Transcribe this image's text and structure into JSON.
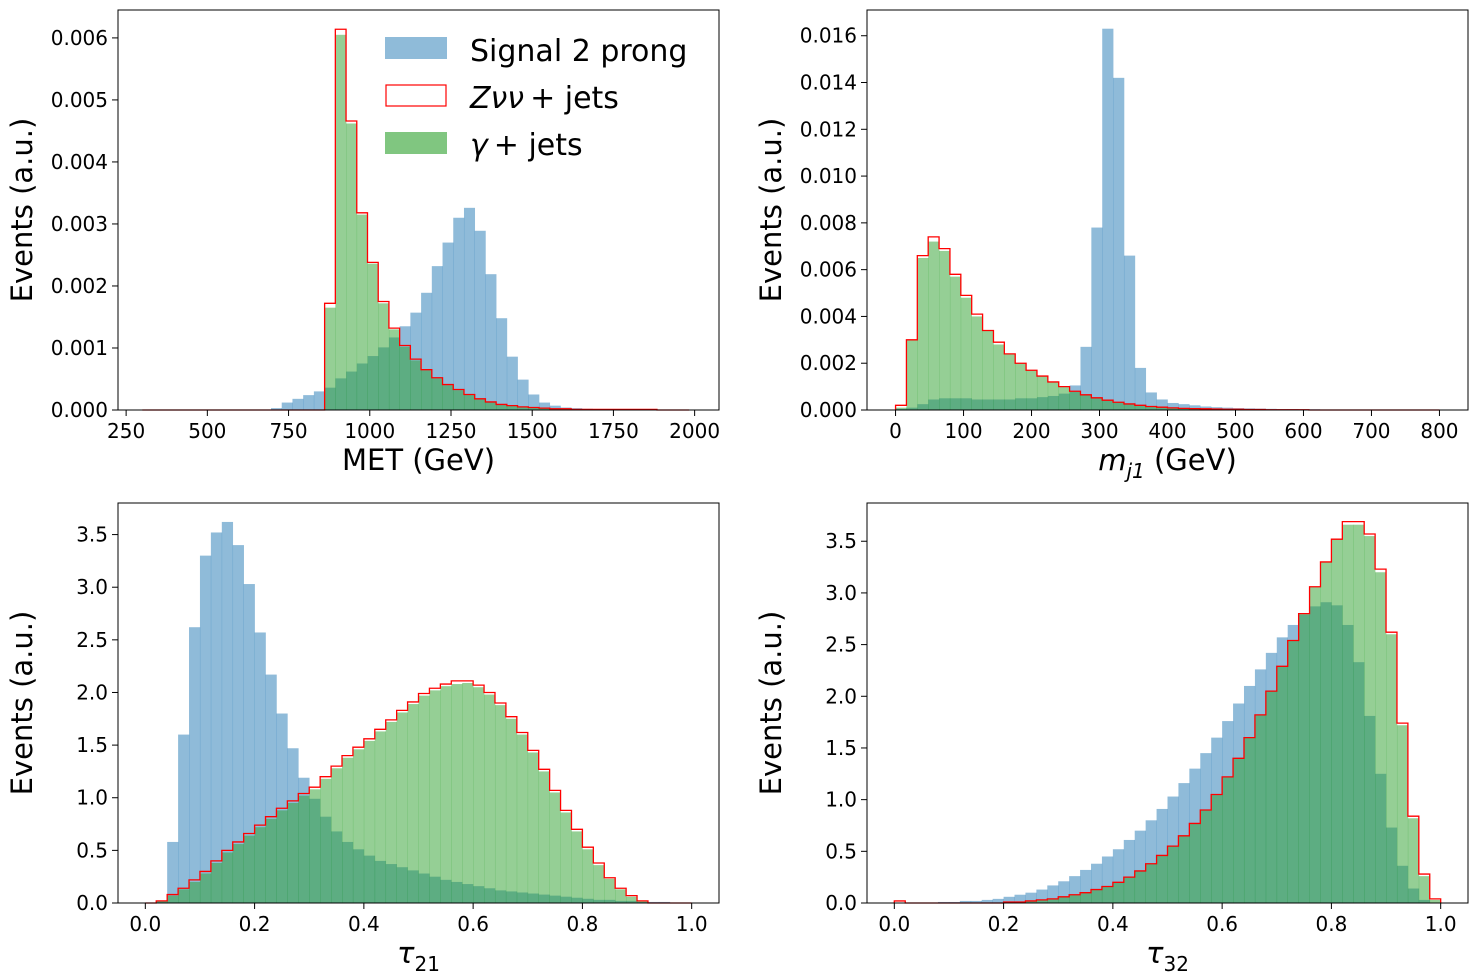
{
  "colors": {
    "signal": "#1f77b4",
    "zvv": "#ff0000",
    "gamma": "#2ca02c"
  },
  "legend": {
    "signal": "Signal 2 prong",
    "zvv_sym": "Zνν",
    "zvv_suffix": "+  jets",
    "gamma_sym": "γ",
    "gamma_suffix": "+  jets"
  },
  "chart_data": [
    {
      "type": "histogram",
      "id": "met",
      "xlabel": "MET (GeV)",
      "xlabel_parts": [
        {
          "t": "MET (GeV)"
        }
      ],
      "ylabel": "Events (a.u.)",
      "xlim": [
        225,
        2075
      ],
      "ylim": [
        0,
        0.00645
      ],
      "xticks": [
        250,
        500,
        750,
        1000,
        1250,
        1500,
        1750,
        2000
      ],
      "yticks": [
        0,
        0.001,
        0.002,
        0.003,
        0.004,
        0.005,
        0.006
      ],
      "ytick_decimals": 3,
      "bins": {
        "start": 300,
        "width": 33
      },
      "series": [
        {
          "key": "signal",
          "name": "Signal 2 prong",
          "values": [
            0,
            0,
            0,
            0,
            0,
            0,
            0,
            0,
            0,
            0,
            0,
            0,
            3e-05,
            0.00012,
            0.00018,
            0.00024,
            0.0003,
            0.00036,
            0.00051,
            0.00062,
            0.00075,
            0.00087,
            0.00101,
            0.00117,
            0.00135,
            0.00157,
            0.00189,
            0.00232,
            0.0027,
            0.0031,
            0.00326,
            0.00289,
            0.00219,
            0.00148,
            0.00086,
            0.00049,
            0.00025,
            0.00012,
            7e-05,
            4e-05,
            3e-05,
            2e-05,
            1e-05,
            1e-05,
            1e-05,
            1e-05,
            0,
            0,
            0,
            0,
            0
          ]
        },
        {
          "key": "zvv",
          "name": "Zνν + jets",
          "values": [
            0,
            0,
            0,
            0,
            0,
            0,
            0,
            0,
            0,
            0,
            0,
            0,
            0,
            0,
            0,
            0,
            0,
            0.00172,
            0.00614,
            0.00466,
            0.00318,
            0.00238,
            0.00175,
            0.00132,
            0.00104,
            0.00082,
            0.00065,
            0.00052,
            0.00041,
            0.00033,
            0.00025,
            0.00018,
            0.00013,
            9e-05,
            7e-05,
            5e-05,
            4e-05,
            3e-05,
            2e-05,
            2e-05,
            1e-05,
            1e-05,
            1e-05,
            1e-05,
            1e-05,
            1e-05,
            1e-05,
            1e-05,
            0,
            0,
            0
          ]
        },
        {
          "key": "gamma",
          "name": "γ + jets",
          "values": [
            0,
            0,
            0,
            0,
            0,
            0,
            0,
            0,
            0,
            0,
            0,
            0,
            0,
            0,
            0,
            0,
            0,
            0.00165,
            0.00605,
            0.00462,
            0.00315,
            0.00236,
            0.00172,
            0.0013,
            0.00102,
            0.0008,
            0.00064,
            0.00051,
            0.0004,
            0.00032,
            0.00025,
            0.00018,
            0.00013,
            9e-05,
            7e-05,
            5e-05,
            4e-05,
            3e-05,
            2e-05,
            2e-05,
            1e-05,
            1e-05,
            1e-05,
            1e-05,
            1e-05,
            1e-05,
            1e-05,
            1e-05,
            0,
            0,
            0
          ]
        }
      ]
    },
    {
      "type": "histogram",
      "id": "mj1",
      "xlabel": "m_j1 (GeV)",
      "xlabel_parts": [
        {
          "t": "m",
          "italic": true
        },
        {
          "t": "j1",
          "italic": true,
          "sub": true
        },
        {
          "t": " (GeV)"
        }
      ],
      "ylabel": "Events (a.u.)",
      "xlim": [
        -42,
        842
      ],
      "ylim": [
        0,
        0.0171
      ],
      "xticks": [
        0,
        100,
        200,
        300,
        400,
        500,
        600,
        700,
        800
      ],
      "yticks": [
        0,
        0.002,
        0.004,
        0.006,
        0.008,
        0.01,
        0.012,
        0.014,
        0.016
      ],
      "ytick_decimals": 3,
      "bins": {
        "start": 0,
        "width": 16
      },
      "series": [
        {
          "key": "signal",
          "name": "Signal 2 prong",
          "values": [
            5e-05,
            0.0001,
            0.00025,
            0.00045,
            0.0005,
            0.0005,
            0.0005,
            0.00045,
            0.00045,
            0.00045,
            0.00045,
            0.0005,
            0.0005,
            0.00055,
            0.0006,
            0.0007,
            0.00105,
            0.0027,
            0.0078,
            0.0163,
            0.0142,
            0.0066,
            0.0018,
            0.00075,
            0.00045,
            0.0003,
            0.00025,
            0.0002,
            0.00015,
            0.00012,
            0.0001,
            8e-05,
            7e-05,
            6e-05,
            5e-05,
            4e-05,
            4e-05,
            3e-05,
            3e-05,
            2e-05,
            2e-05,
            2e-05,
            1e-05,
            1e-05,
            1e-05,
            1e-05,
            1e-05,
            1e-05,
            1e-05,
            1e-05
          ]
        },
        {
          "key": "zvv",
          "name": "Zνν + jets",
          "values": [
            0.0002,
            0.003,
            0.0066,
            0.0074,
            0.0069,
            0.0058,
            0.0049,
            0.0041,
            0.0034,
            0.0029,
            0.0024,
            0.002,
            0.0017,
            0.00145,
            0.0012,
            0.001,
            0.0008,
            0.00065,
            0.00052,
            0.00042,
            0.00033,
            0.00026,
            0.0002,
            0.00015,
            0.00012,
            9e-05,
            7e-05,
            6e-05,
            5e-05,
            4e-05,
            3e-05,
            3e-05,
            2e-05,
            2e-05,
            1e-05,
            1e-05,
            1e-05,
            1e-05,
            0,
            0,
            0,
            0,
            0,
            0,
            0,
            0,
            0,
            0,
            0,
            0
          ]
        },
        {
          "key": "gamma",
          "name": "γ + jets",
          "values": [
            0.0001,
            0.003,
            0.0065,
            0.0072,
            0.0068,
            0.0057,
            0.0048,
            0.004,
            0.0034,
            0.0028,
            0.0024,
            0.002,
            0.0017,
            0.00145,
            0.0012,
            0.00098,
            0.00078,
            0.00063,
            0.0005,
            0.0004,
            0.00032,
            0.00025,
            0.00019,
            0.00015,
            0.00011,
            9e-05,
            7e-05,
            6e-05,
            5e-05,
            4e-05,
            3e-05,
            3e-05,
            2e-05,
            2e-05,
            1e-05,
            1e-05,
            1e-05,
            1e-05,
            0,
            0,
            0,
            0,
            0,
            0,
            0,
            0,
            0,
            0,
            0,
            0
          ]
        }
      ]
    },
    {
      "type": "histogram",
      "id": "tau21",
      "xlabel": "τ_21",
      "xlabel_parts": [
        {
          "t": "τ",
          "italic": true
        },
        {
          "t": "21",
          "sub": true
        }
      ],
      "ylabel": "Events (a.u.)",
      "xlim": [
        -0.05,
        1.05
      ],
      "ylim": [
        0,
        3.8
      ],
      "xticks": [
        0,
        0.2,
        0.4,
        0.6,
        0.8,
        1.0
      ],
      "yticks": [
        0,
        0.5,
        1.0,
        1.5,
        2.0,
        2.5,
        3.0,
        3.5
      ],
      "ytick_decimals": 1,
      "bins": {
        "start": 0,
        "width": 0.02
      },
      "series": [
        {
          "key": "signal",
          "name": "Signal 2 prong",
          "values": [
            0,
            0.02,
            0.58,
            1.6,
            2.62,
            3.3,
            3.52,
            3.62,
            3.4,
            3.03,
            2.57,
            2.17,
            1.8,
            1.47,
            1.19,
            0.99,
            0.82,
            0.68,
            0.58,
            0.51,
            0.45,
            0.4,
            0.37,
            0.34,
            0.31,
            0.28,
            0.25,
            0.22,
            0.2,
            0.18,
            0.16,
            0.14,
            0.12,
            0.11,
            0.1,
            0.09,
            0.08,
            0.07,
            0.06,
            0.05,
            0.04,
            0.03,
            0.03,
            0.02,
            0.02,
            0.01,
            0.01,
            0.01,
            0.0,
            0.0
          ]
        },
        {
          "key": "zvv",
          "name": "Zνν + jets",
          "values": [
            0.0,
            0.02,
            0.08,
            0.14,
            0.22,
            0.3,
            0.4,
            0.5,
            0.58,
            0.66,
            0.74,
            0.82,
            0.9,
            0.97,
            1.04,
            1.1,
            1.2,
            1.3,
            1.4,
            1.48,
            1.56,
            1.65,
            1.74,
            1.83,
            1.91,
            1.99,
            2.04,
            2.08,
            2.11,
            2.11,
            2.07,
            2.0,
            1.9,
            1.77,
            1.62,
            1.45,
            1.27,
            1.07,
            0.88,
            0.7,
            0.53,
            0.38,
            0.24,
            0.14,
            0.07,
            0.02,
            0.0,
            0.0,
            0.0,
            0.0
          ]
        },
        {
          "key": "gamma",
          "name": "γ + jets",
          "values": [
            0.0,
            0.02,
            0.07,
            0.13,
            0.2,
            0.28,
            0.38,
            0.48,
            0.56,
            0.64,
            0.72,
            0.8,
            0.88,
            0.95,
            1.02,
            1.08,
            1.18,
            1.28,
            1.38,
            1.46,
            1.54,
            1.63,
            1.72,
            1.81,
            1.89,
            1.97,
            2.02,
            2.06,
            2.08,
            2.09,
            2.05,
            1.98,
            1.88,
            1.75,
            1.6,
            1.43,
            1.25,
            1.05,
            0.86,
            0.68,
            0.51,
            0.36,
            0.23,
            0.13,
            0.06,
            0.02,
            0.0,
            0.0,
            0.0,
            0.0
          ]
        }
      ]
    },
    {
      "type": "histogram",
      "id": "tau32",
      "xlabel": "τ_32",
      "xlabel_parts": [
        {
          "t": "τ",
          "italic": true
        },
        {
          "t": "32",
          "sub": true
        }
      ],
      "ylabel": "Events (a.u.)",
      "xlim": [
        -0.05,
        1.05
      ],
      "ylim": [
        0,
        3.87
      ],
      "xticks": [
        0,
        0.2,
        0.4,
        0.6,
        0.8,
        1.0
      ],
      "yticks": [
        0,
        0.5,
        1.0,
        1.5,
        2.0,
        2.5,
        3.0,
        3.5
      ],
      "ytick_decimals": 1,
      "bins": {
        "start": 0,
        "width": 0.02
      },
      "series": [
        {
          "key": "signal",
          "name": "Signal 2 prong",
          "values": [
            0,
            0,
            0,
            0,
            0.01,
            0.01,
            0.02,
            0.02,
            0.03,
            0.04,
            0.06,
            0.08,
            0.1,
            0.13,
            0.17,
            0.21,
            0.26,
            0.32,
            0.38,
            0.45,
            0.52,
            0.61,
            0.7,
            0.8,
            0.91,
            1.03,
            1.16,
            1.3,
            1.45,
            1.6,
            1.76,
            1.93,
            2.1,
            2.26,
            2.42,
            2.57,
            2.69,
            2.79,
            2.87,
            2.91,
            2.88,
            2.69,
            2.33,
            1.81,
            1.25,
            0.73,
            0.36,
            0.14,
            0.03,
            0.0
          ]
        },
        {
          "key": "zvv",
          "name": "Zνν + jets",
          "values": [
            0.02,
            0.0,
            0.0,
            0.0,
            0.0,
            0.0,
            0.0,
            0.0,
            0.0,
            0.0,
            0.01,
            0.01,
            0.02,
            0.03,
            0.04,
            0.06,
            0.08,
            0.1,
            0.13,
            0.16,
            0.2,
            0.25,
            0.31,
            0.38,
            0.46,
            0.55,
            0.65,
            0.77,
            0.9,
            1.05,
            1.22,
            1.4,
            1.6,
            1.82,
            2.05,
            2.29,
            2.54,
            2.8,
            3.06,
            3.3,
            3.52,
            3.69,
            3.69,
            3.57,
            3.23,
            2.62,
            1.74,
            0.84,
            0.28,
            0.04
          ]
        },
        {
          "key": "gamma",
          "name": "γ + jets",
          "values": [
            0.0,
            0.0,
            0.0,
            0.0,
            0.0,
            0.0,
            0.0,
            0.0,
            0.0,
            0.0,
            0.01,
            0.01,
            0.02,
            0.03,
            0.04,
            0.06,
            0.08,
            0.1,
            0.13,
            0.16,
            0.2,
            0.25,
            0.31,
            0.38,
            0.46,
            0.55,
            0.65,
            0.77,
            0.9,
            1.05,
            1.22,
            1.4,
            1.6,
            1.82,
            2.05,
            2.29,
            2.54,
            2.8,
            3.06,
            3.3,
            3.52,
            3.66,
            3.66,
            3.55,
            3.2,
            2.6,
            1.72,
            0.82,
            0.26,
            0.03
          ]
        }
      ]
    }
  ]
}
